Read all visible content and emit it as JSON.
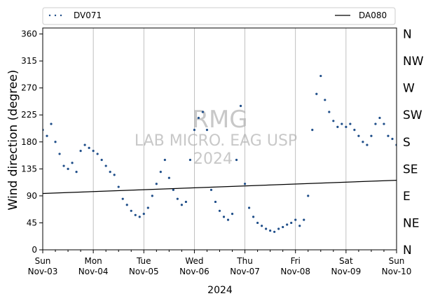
{
  "chart_data": {
    "type": "scatter",
    "title": "",
    "xlabel": "2024",
    "ylabel": "Wind direction (degree)",
    "ylim": [
      0,
      370
    ],
    "xlim": [
      "2024-11-03",
      "2024-11-10"
    ],
    "grid": "vertical lines at day boundaries",
    "legend": "top, spanning full width",
    "categories": [
      "Sun\nNov-03",
      "Mon\nNov-04",
      "Tue\nNov-05",
      "Wed\nNov-06",
      "Thu\nNov-07",
      "Fri\nNov-08",
      "Sat\nNov-09",
      "Sun\nNov-10"
    ],
    "yticks": [
      "0",
      "45",
      "90",
      "135",
      "180",
      "225",
      "270",
      "315",
      "360"
    ],
    "compass_labels": [
      "N",
      "NE",
      "E",
      "SE",
      "S",
      "SW",
      "W",
      "NW",
      "N"
    ],
    "watermark": [
      "RMG",
      "LAB MICRO. EAG USP",
      "2024"
    ],
    "series": [
      {
        "name": "DV071",
        "style": "dots",
        "color": "#1f4e89",
        "points": [
          [
            "2024-11-03T00:00",
            200
          ],
          [
            "2024-11-03T02:00",
            190
          ],
          [
            "2024-11-03T04:00",
            210
          ],
          [
            "2024-11-03T06:00",
            180
          ],
          [
            "2024-11-03T08:00",
            160
          ],
          [
            "2024-11-03T10:00",
            140
          ],
          [
            "2024-11-03T12:00",
            135
          ],
          [
            "2024-11-03T14:00",
            145
          ],
          [
            "2024-11-03T16:00",
            130
          ],
          [
            "2024-11-03T18:00",
            165
          ],
          [
            "2024-11-03T20:00",
            175
          ],
          [
            "2024-11-03T22:00",
            170
          ],
          [
            "2024-11-04T00:00",
            165
          ],
          [
            "2024-11-04T02:00",
            160
          ],
          [
            "2024-11-04T04:00",
            150
          ],
          [
            "2024-11-04T06:00",
            140
          ],
          [
            "2024-11-04T08:00",
            130
          ],
          [
            "2024-11-04T10:00",
            125
          ],
          [
            "2024-11-04T12:00",
            105
          ],
          [
            "2024-11-04T14:00",
            85
          ],
          [
            "2024-11-04T16:00",
            75
          ],
          [
            "2024-11-04T18:00",
            65
          ],
          [
            "2024-11-04T20:00",
            58
          ],
          [
            "2024-11-04T22:00",
            55
          ],
          [
            "2024-11-05T00:00",
            60
          ],
          [
            "2024-11-05T02:00",
            70
          ],
          [
            "2024-11-05T04:00",
            90
          ],
          [
            "2024-11-05T06:00",
            110
          ],
          [
            "2024-11-05T08:00",
            130
          ],
          [
            "2024-11-05T10:00",
            150
          ],
          [
            "2024-11-05T12:00",
            120
          ],
          [
            "2024-11-05T14:00",
            100
          ],
          [
            "2024-11-05T16:00",
            85
          ],
          [
            "2024-11-05T18:00",
            75
          ],
          [
            "2024-11-05T20:00",
            80
          ],
          [
            "2024-11-05T22:00",
            150
          ],
          [
            "2024-11-06T00:00",
            200
          ],
          [
            "2024-11-06T02:00",
            220
          ],
          [
            "2024-11-06T04:00",
            230
          ],
          [
            "2024-11-06T06:00",
            200
          ],
          [
            "2024-11-06T08:00",
            100
          ],
          [
            "2024-11-06T10:00",
            80
          ],
          [
            "2024-11-06T12:00",
            65
          ],
          [
            "2024-11-06T14:00",
            55
          ],
          [
            "2024-11-06T16:00",
            50
          ],
          [
            "2024-11-06T18:00",
            60
          ],
          [
            "2024-11-06T20:00",
            150
          ],
          [
            "2024-11-06T22:00",
            240
          ],
          [
            "2024-11-07T00:00",
            110
          ],
          [
            "2024-11-07T02:00",
            70
          ],
          [
            "2024-11-07T04:00",
            55
          ],
          [
            "2024-11-07T06:00",
            45
          ],
          [
            "2024-11-07T08:00",
            40
          ],
          [
            "2024-11-07T10:00",
            35
          ],
          [
            "2024-11-07T12:00",
            32
          ],
          [
            "2024-11-07T14:00",
            30
          ],
          [
            "2024-11-07T16:00",
            35
          ],
          [
            "2024-11-07T18:00",
            38
          ],
          [
            "2024-11-07T20:00",
            42
          ],
          [
            "2024-11-07T22:00",
            45
          ],
          [
            "2024-11-08T00:00",
            50
          ],
          [
            "2024-11-08T02:00",
            40
          ],
          [
            "2024-11-08T04:00",
            50
          ],
          [
            "2024-11-08T06:00",
            90
          ],
          [
            "2024-11-08T08:00",
            200
          ],
          [
            "2024-11-08T10:00",
            260
          ],
          [
            "2024-11-08T12:00",
            290
          ],
          [
            "2024-11-08T14:00",
            250
          ],
          [
            "2024-11-08T16:00",
            230
          ],
          [
            "2024-11-08T18:00",
            215
          ],
          [
            "2024-11-08T20:00",
            205
          ],
          [
            "2024-11-08T22:00",
            210
          ],
          [
            "2024-11-09T00:00",
            205
          ],
          [
            "2024-11-09T02:00",
            210
          ],
          [
            "2024-11-09T04:00",
            200
          ],
          [
            "2024-11-09T06:00",
            190
          ],
          [
            "2024-11-09T08:00",
            180
          ],
          [
            "2024-11-09T10:00",
            175
          ],
          [
            "2024-11-09T12:00",
            190
          ],
          [
            "2024-11-09T14:00",
            210
          ],
          [
            "2024-11-09T16:00",
            220
          ],
          [
            "2024-11-09T18:00",
            210
          ],
          [
            "2024-11-09T20:00",
            190
          ],
          [
            "2024-11-09T22:00",
            185
          ],
          [
            "2024-11-10T00:00",
            175
          ]
        ]
      },
      {
        "name": "DA080",
        "style": "line",
        "color": "#000000",
        "points": [
          [
            "2024-11-03T00:00",
            94
          ],
          [
            "2024-11-10T00:00",
            116
          ]
        ]
      }
    ]
  }
}
